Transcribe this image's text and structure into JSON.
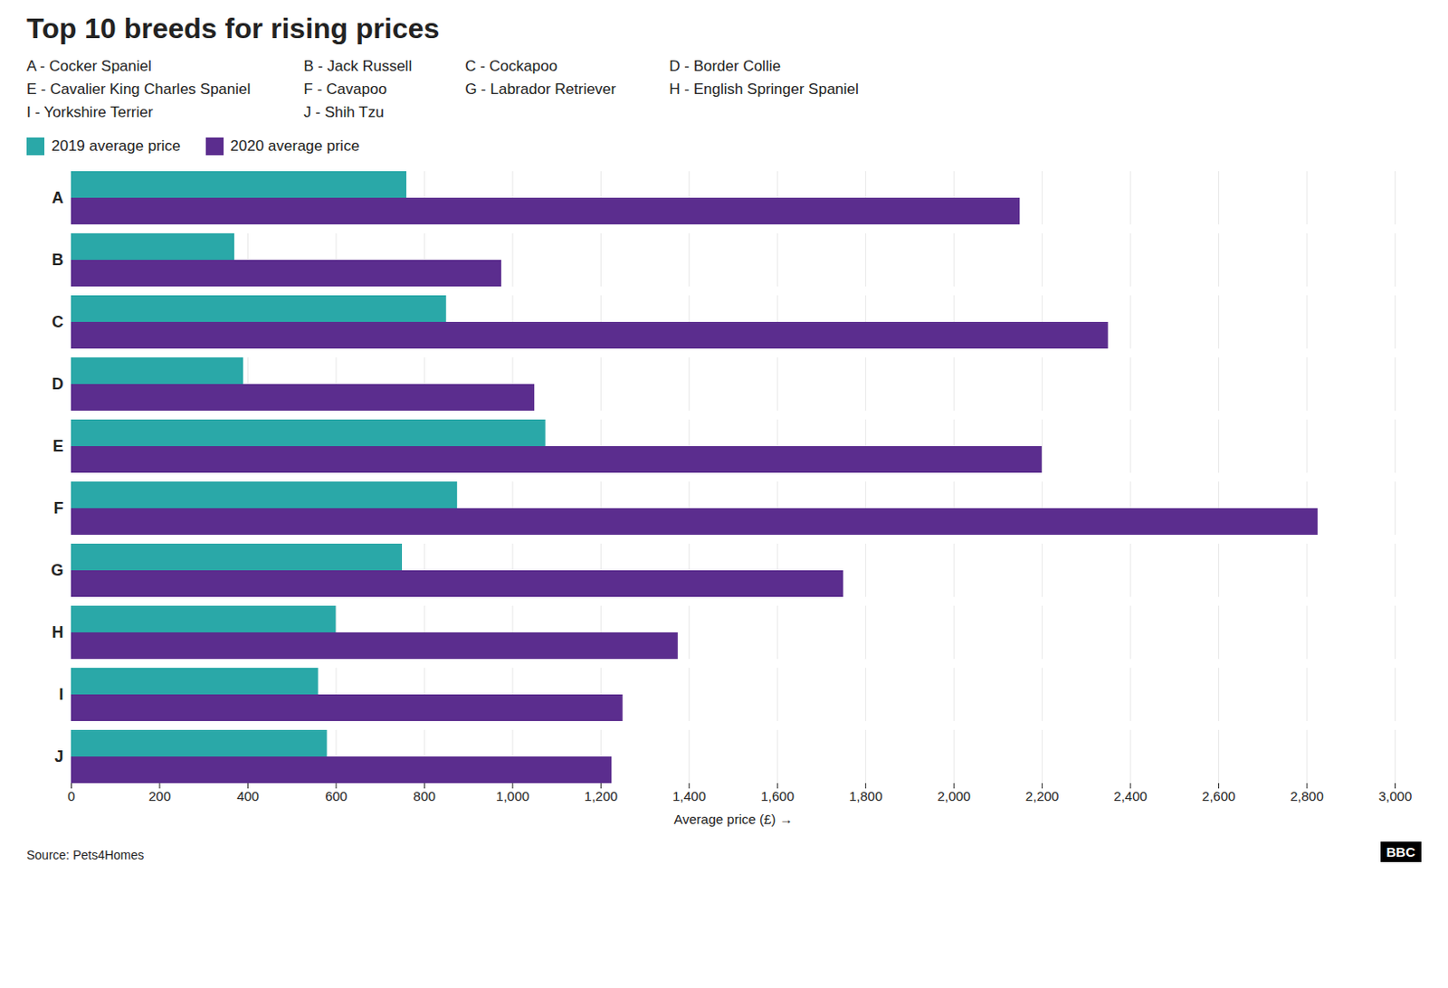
{
  "chart_data": {
    "type": "bar",
    "orientation": "horizontal",
    "title": "Top 10 breeds for rising prices",
    "subtitle": [
      "A - Cocker Spaniel",
      "B - Jack Russell",
      "C - Cockapoo",
      "D - Border Collie",
      "E - Cavalier King Charles Spaniel",
      "F - Cavapoo",
      "G - Labrador Retriever",
      "H - English Springer Spaniel",
      "I - Yorkshire Terrier",
      "J - Shih Tzu"
    ],
    "caption": "Source: Pets4Homes",
    "annotations": [
      "BBC"
    ],
    "categories": [
      "A",
      "B",
      "C",
      "D",
      "E",
      "F",
      "G",
      "H",
      "I",
      "J"
    ],
    "series": [
      {
        "name": "2019 average price",
        "color": "#2aa8a8",
        "values": [
          760,
          370,
          850,
          390,
          1075,
          875,
          750,
          600,
          560,
          580
        ]
      },
      {
        "name": "2020 average price",
        "color": "#5b2d8e",
        "values": [
          2150,
          975,
          2350,
          1050,
          2200,
          2825,
          1750,
          1375,
          1250,
          1225
        ]
      }
    ],
    "xlabel": "Average price (£)",
    "xlim": [
      0,
      3000
    ],
    "xticks": [
      0,
      200,
      400,
      600,
      800,
      {
        "value": 1000,
        "label": "1,000"
      },
      {
        "value": 1200,
        "label": "1,200"
      },
      {
        "value": 1400,
        "label": "1,400"
      },
      {
        "value": 1600,
        "label": "1,600"
      },
      {
        "value": 1800,
        "label": "1,800"
      },
      {
        "value": 2000,
        "label": "2,000"
      },
      {
        "value": 2200,
        "label": "2,200"
      },
      {
        "value": 2400,
        "label": "2,400"
      },
      {
        "value": 2600,
        "label": "2,600"
      },
      {
        "value": 2800,
        "label": "2,800"
      },
      {
        "value": 3000,
        "label": "3,000"
      }
    ],
    "grid": true,
    "legend": "top left"
  }
}
